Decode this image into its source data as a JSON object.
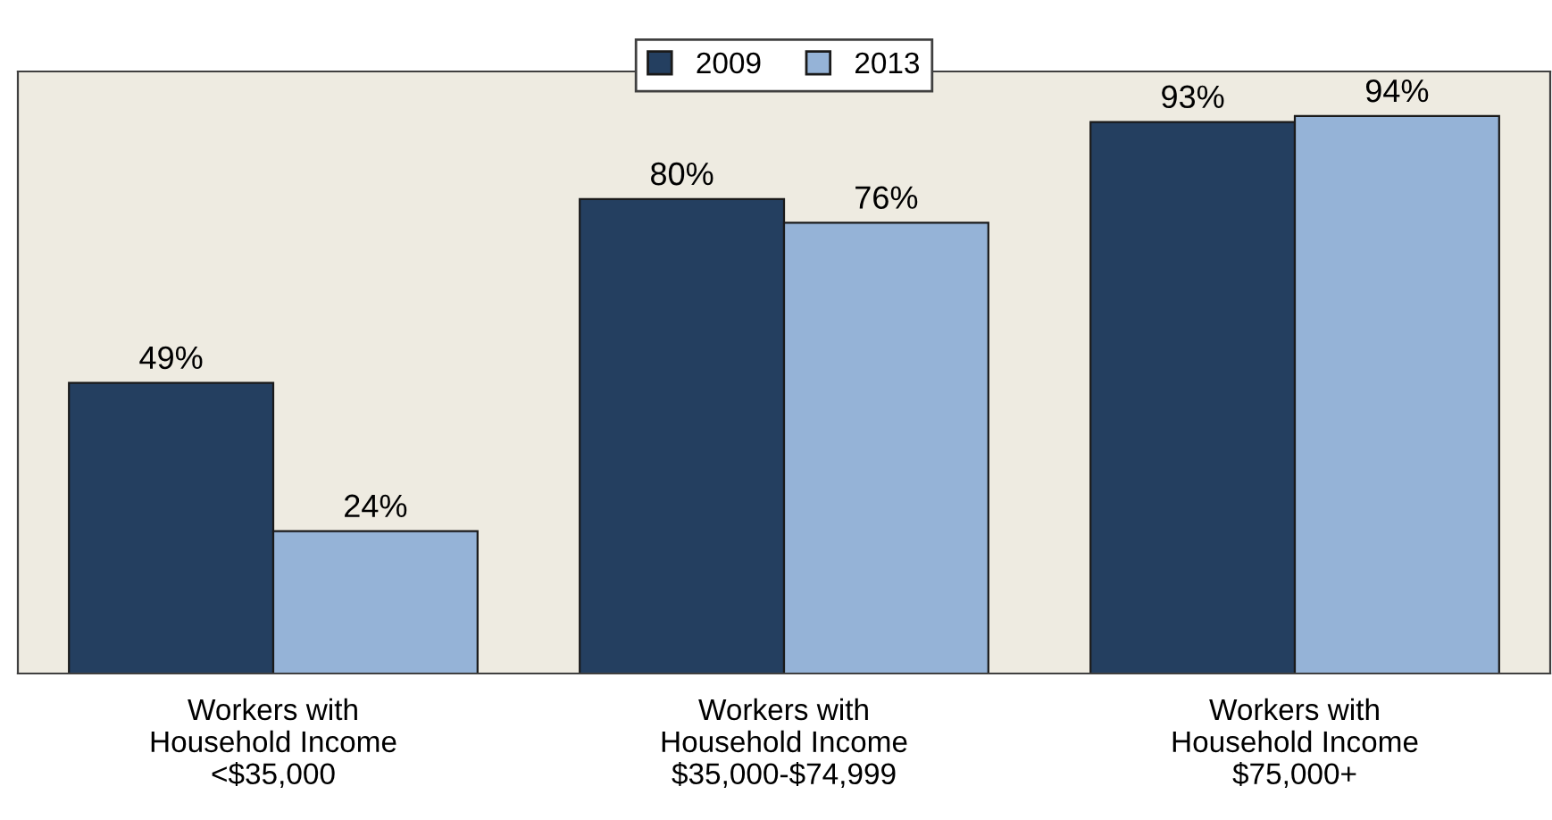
{
  "chart_data": {
    "type": "bar",
    "categories": [
      "Workers with\nHousehold Income\n<$35,000",
      "Workers with\nHousehold Income\n$35,000-$74,999",
      "Workers with\nHousehold Income\n$75,000+"
    ],
    "series": [
      {
        "name": "2009",
        "color": "#243f60",
        "values": [
          49,
          80,
          93
        ],
        "value_labels": [
          "49%",
          "80%",
          "93%"
        ]
      },
      {
        "name": "2013",
        "color": "#95b3d7",
        "values": [
          24,
          76,
          94
        ],
        "value_labels": [
          "24%",
          "76%",
          "94%"
        ]
      }
    ],
    "grid": false,
    "legend": "top"
  }
}
